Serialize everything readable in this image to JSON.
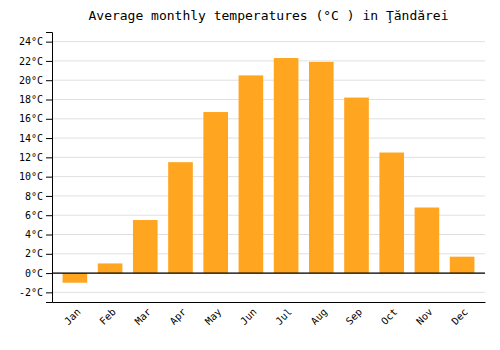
{
  "chart_data": {
    "type": "bar",
    "title": "Average monthly temperatures (°C ) in Ţăndărei",
    "categories": [
      "Jan",
      "Feb",
      "Mar",
      "Apr",
      "May",
      "Jun",
      "Jul",
      "Aug",
      "Sep",
      "Oct",
      "Nov",
      "Dec"
    ],
    "values": [
      -1.0,
      1.0,
      5.5,
      11.5,
      16.7,
      20.5,
      22.3,
      21.9,
      18.2,
      12.5,
      6.8,
      1.7
    ],
    "color": "#FFA520",
    "ylim": [
      -3,
      25
    ],
    "yticks": [
      {
        "value": -2,
        "label": "-2°C"
      },
      {
        "value": 0,
        "label": "0°C"
      },
      {
        "value": 2,
        "label": "2°C"
      },
      {
        "value": 4,
        "label": "4°C"
      },
      {
        "value": 6,
        "label": "6°C"
      },
      {
        "value": 8,
        "label": "8°C"
      },
      {
        "value": 10,
        "label": "10°C"
      },
      {
        "value": 12,
        "label": "12°C"
      },
      {
        "value": 14,
        "label": "14°C"
      },
      {
        "value": 16,
        "label": "16°C"
      },
      {
        "value": 18,
        "label": "18°C"
      },
      {
        "value": 20,
        "label": "20°C"
      },
      {
        "value": 22,
        "label": "22°C"
      },
      {
        "value": 24,
        "label": "24°C"
      }
    ],
    "grid": true
  }
}
